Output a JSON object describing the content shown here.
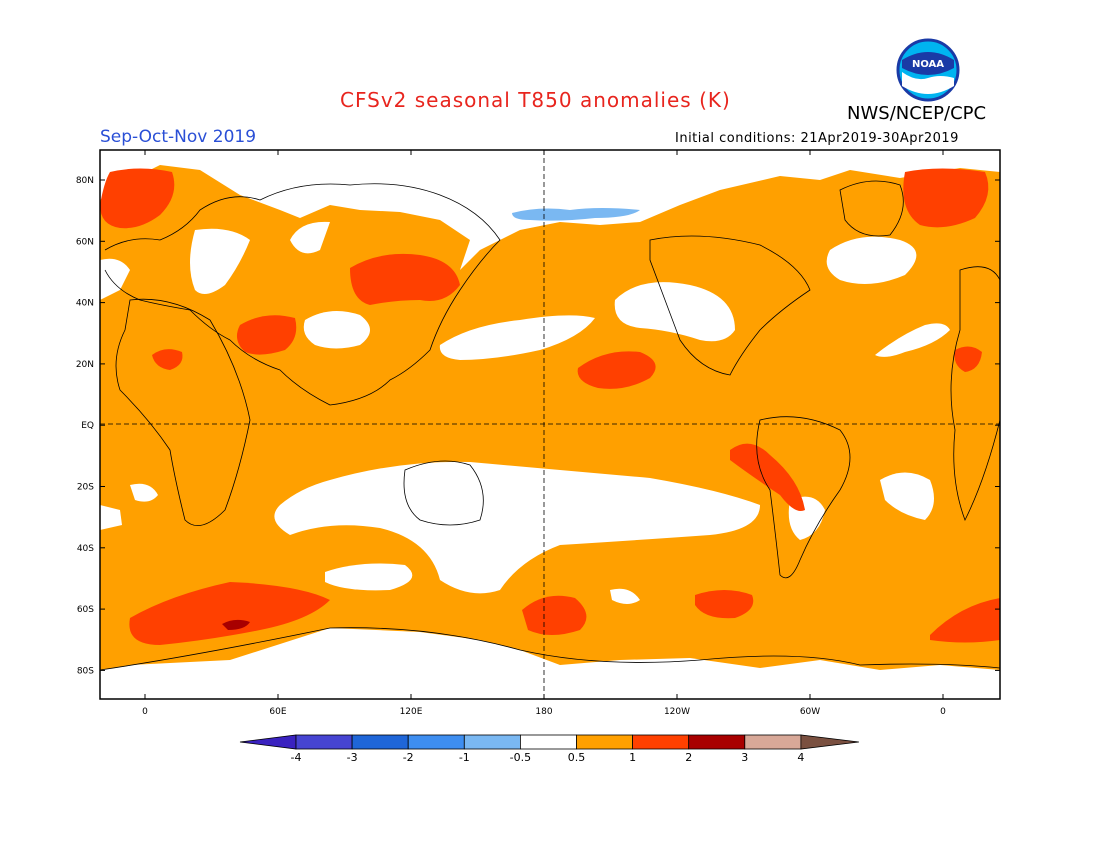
{
  "header": {
    "title": "CFSv2 seasonal T850 anomalies (K)",
    "season": "Sep-Oct-Nov 2019",
    "agency": "NWS/NCEP/CPC",
    "logo_text": "NOAA",
    "initial_conditions": "Initial conditions: 21Apr2019-30Apr2019"
  },
  "map": {
    "lat_labels": [
      "80N",
      "60N",
      "40N",
      "20N",
      "EQ",
      "20S",
      "40S",
      "60S",
      "80S"
    ],
    "lon_labels": [
      "0",
      "60E",
      "120E",
      "180",
      "120W",
      "60W",
      "0"
    ],
    "ocean_fill": "#ffa000",
    "neutral_fill": "#ffffff"
  },
  "colorbar": {
    "labels": [
      "-4",
      "-3",
      "-2",
      "-1",
      "-0.5",
      "0.5",
      "1",
      "2",
      "3",
      "4"
    ],
    "colors": [
      "#3a22c0",
      "#4644d2",
      "#1f66d8",
      "#3e8ef0",
      "#7ab8f2",
      "#ffffff",
      "#ffa000",
      "#ff4000",
      "#a80000",
      "#d8a898",
      "#7a5040"
    ]
  }
}
